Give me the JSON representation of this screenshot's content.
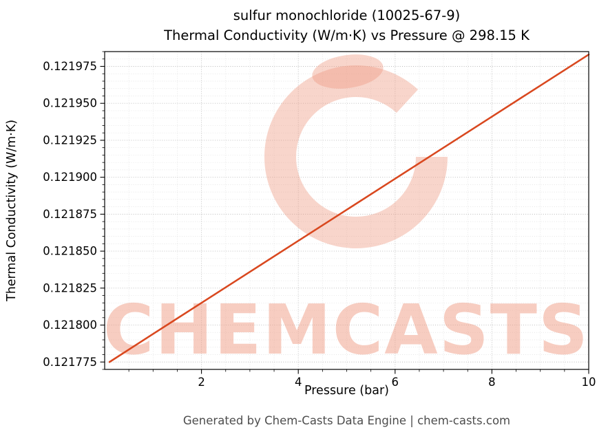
{
  "chart_data": {
    "type": "line",
    "title_line1": "sulfur monochloride (10025-67-9)",
    "title_line2": "Thermal Conductivity (W/m·K) vs Pressure @ 298.15 K",
    "xlabel": "Pressure (bar)",
    "ylabel": "Thermal Conductivity (W/m·K)",
    "series": [
      {
        "name": "thermal-conductivity-vs-pressure",
        "x": [
          0.1,
          1,
          2,
          3,
          4,
          5,
          6,
          7,
          8,
          9,
          10
        ],
        "y": [
          0.121775,
          0.121794,
          0.121815,
          0.121836,
          0.121857,
          0.121878,
          0.121899,
          0.12192,
          0.121941,
          0.121962,
          0.121983
        ]
      }
    ],
    "xlim": [
      0,
      10
    ],
    "ylim": [
      0.12177,
      0.121985
    ],
    "x_ticks": [
      2,
      4,
      6,
      8,
      10
    ],
    "y_ticks": [
      0.121775,
      0.1218,
      0.121825,
      0.12185,
      0.121875,
      0.1219,
      0.121925,
      0.12195,
      0.121975
    ],
    "x_minor_step": 0.5,
    "y_minor_step": 5e-06,
    "grid": true,
    "legend": "none",
    "line_color": "#d9481f",
    "grid_major_color": "#b8b8b8",
    "grid_minor_color": "#dddddd",
    "axis_color": "#000000"
  },
  "watermark": {
    "text": "CHEMCASTS",
    "color": "#ef9b83"
  },
  "footer": {
    "text": "Generated by Chem-Casts Data Engine | chem-casts.com"
  }
}
